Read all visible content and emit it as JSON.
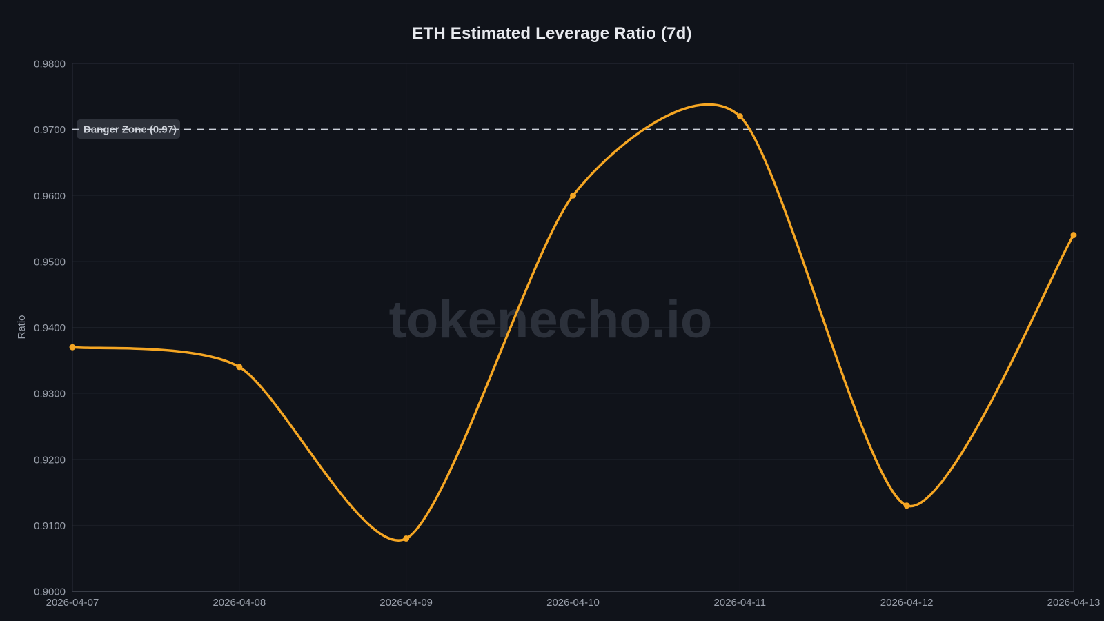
{
  "chart_data": {
    "type": "line",
    "title": "ETH Estimated Leverage Ratio (7d)",
    "ylabel": "Ratio",
    "xlabel": "",
    "watermark": "tokenecho.io",
    "categories": [
      "2026-04-07",
      "2026-04-08",
      "2026-04-09",
      "2026-04-10",
      "2026-04-11",
      "2026-04-12",
      "2026-04-13"
    ],
    "values": [
      0.937,
      0.934,
      0.908,
      0.96,
      0.972,
      0.913,
      0.954
    ],
    "ylim": [
      0.9,
      0.98
    ],
    "ytick_labels": [
      "0.9800",
      "0.9700",
      "0.9600",
      "0.9500",
      "0.9400",
      "0.9300",
      "0.9200",
      "0.9100",
      "0.9000"
    ],
    "danger_line": {
      "value": 0.97,
      "label": "Danger Zone (0.97)"
    },
    "grid": true,
    "legend": "none",
    "colors": {
      "line": "#f5a623",
      "point": "#f5a623",
      "danger_dash": "#cdd2db",
      "background": "#10131a",
      "grid": "#1b1f27",
      "plot_border": "#2a2e39",
      "axis_line": "#454a55",
      "axis_text": "#9aa0ab",
      "title_text": "#e8eaef",
      "watermark_text": "#2c313b",
      "danger_box_bg": "#30343d",
      "danger_box_text": "#cfd3db"
    }
  }
}
